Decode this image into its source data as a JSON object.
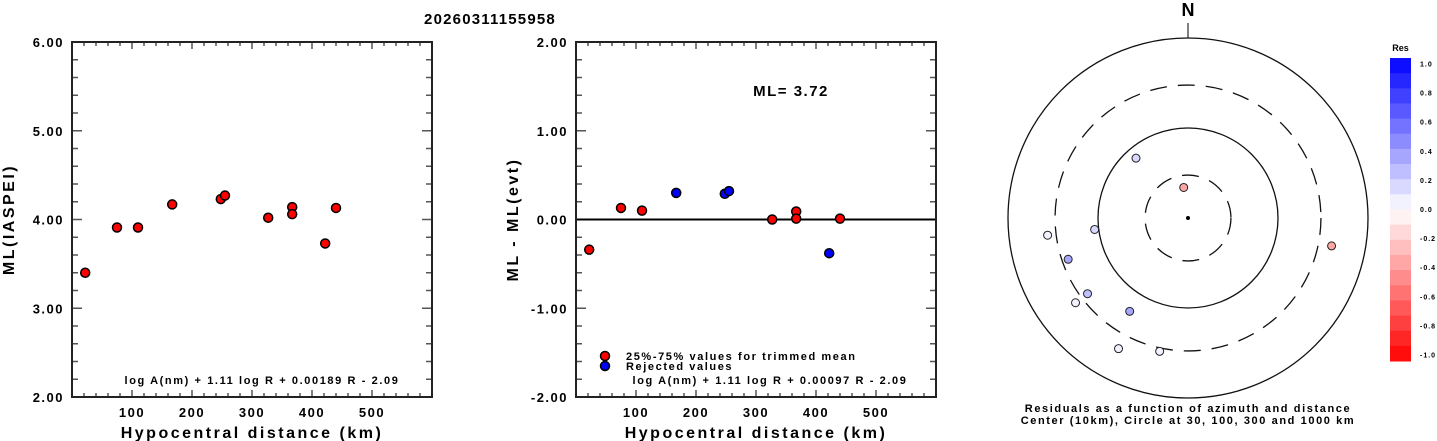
{
  "title": "20260311155958",
  "colors": {
    "used": "#ff0000",
    "rejected": "#0000ff",
    "axis": "#000000",
    "tick": "#555555"
  },
  "chart_data": [
    {
      "id": "ml-vs-distance",
      "type": "scatter",
      "title": "",
      "xlabel": "Hypocentral distance (km)",
      "ylabel": "ML(IASPEI)",
      "xlim": [
        0,
        600
      ],
      "ylim": [
        2.0,
        6.0
      ],
      "xticks": [
        100,
        200,
        300,
        400,
        500
      ],
      "yticks": [
        2.0,
        3.0,
        4.0,
        5.0,
        6.0
      ],
      "ytick_labels": [
        "2.00",
        "3.00",
        "4.00",
        "5.00",
        "6.00"
      ],
      "grid": false,
      "annotation": "log A(nm) + 1.11 log R + 0.00189 R - 2.09",
      "series": [
        {
          "name": "station ML",
          "color": "#ff0000",
          "points": [
            {
              "x": 22,
              "y": 3.4
            },
            {
              "x": 75,
              "y": 3.91
            },
            {
              "x": 110,
              "y": 3.91
            },
            {
              "x": 167,
              "y": 4.17
            },
            {
              "x": 248,
              "y": 4.23
            },
            {
              "x": 255,
              "y": 4.27
            },
            {
              "x": 327,
              "y": 4.02
            },
            {
              "x": 367,
              "y": 4.14
            },
            {
              "x": 367,
              "y": 4.06
            },
            {
              "x": 422,
              "y": 3.73
            },
            {
              "x": 440,
              "y": 4.13
            }
          ]
        }
      ]
    },
    {
      "id": "residual-vs-distance",
      "type": "scatter",
      "title": "",
      "xlabel": "Hypocentral distance (km)",
      "ylabel": "ML - ML(evt)",
      "xlim": [
        0,
        600
      ],
      "ylim": [
        -2.0,
        2.0
      ],
      "xticks": [
        100,
        200,
        300,
        400,
        500
      ],
      "yticks": [
        -2.0,
        -1.0,
        0.0,
        1.0,
        2.0
      ],
      "ytick_labels": [
        "-2.00",
        "-1.00",
        "0.00",
        "1.00",
        "2.00"
      ],
      "grid": false,
      "zero_line": true,
      "ml_label": "ML= 3.72",
      "annotation": "log A(nm) + 1.11 log R + 0.00097 R - 2.09",
      "legend": {
        "placement": "bottom-left",
        "entries": [
          {
            "label": "25%-75% values for trimmed mean",
            "color": "#ff0000"
          },
          {
            "label": "Rejected values",
            "color": "#0000ff"
          }
        ]
      },
      "series": [
        {
          "name": "25%-75% values for trimmed mean",
          "color": "#ff0000",
          "points": [
            {
              "x": 22,
              "y": -0.34
            },
            {
              "x": 75,
              "y": 0.13
            },
            {
              "x": 110,
              "y": 0.1
            },
            {
              "x": 327,
              "y": 0.0
            },
            {
              "x": 367,
              "y": 0.09
            },
            {
              "x": 367,
              "y": 0.01
            },
            {
              "x": 440,
              "y": 0.01
            }
          ]
        },
        {
          "name": "Rejected values",
          "color": "#0000ff",
          "points": [
            {
              "x": 167,
              "y": 0.3
            },
            {
              "x": 248,
              "y": 0.29
            },
            {
              "x": 255,
              "y": 0.32
            },
            {
              "x": 422,
              "y": -0.38
            }
          ]
        }
      ]
    },
    {
      "id": "residual-polar",
      "type": "scatter",
      "projection": "polar-azimuth-logdistance",
      "north_label": "N",
      "center_km": 10,
      "circles_km": [
        30,
        100,
        300,
        1000
      ],
      "circle_styles": [
        "dashed",
        "solid",
        "dashed",
        "solid"
      ],
      "caption_line1": "Residuals as a function of azimuth and distance",
      "caption_line2": "Center (10km), Circle at 30, 100, 300 and 1000 km",
      "colorbar": {
        "title": "Res",
        "range": [
          -1.0,
          1.0
        ],
        "tick_labels": [
          "1.0",
          "0.8",
          "0.6",
          "0.4",
          "0.2",
          "0.0",
          "-0.2",
          "-0.4",
          "-0.6",
          "-0.8",
          "-1.0"
        ],
        "positive_color": "#0000ff",
        "negative_color": "#ff0000",
        "steps": 20
      },
      "points": [
        {
          "azimuth": 319,
          "distance_km": 76,
          "residual": 0.13
        },
        {
          "azimuth": 352,
          "distance_km": 22,
          "residual": -0.34
        },
        {
          "azimuth": 263,
          "distance_km": 111,
          "residual": 0.1
        },
        {
          "azimuth": 263,
          "distance_km": 373,
          "residual": 0.01
        },
        {
          "azimuth": 251,
          "distance_km": 256,
          "residual": 0.32
        },
        {
          "azimuth": 233,
          "distance_km": 250,
          "residual": 0.29
        },
        {
          "azimuth": 233,
          "distance_km": 367,
          "residual": 0.09
        },
        {
          "azimuth": 212,
          "distance_km": 167,
          "residual": 0.3
        },
        {
          "azimuth": 208,
          "distance_km": 441,
          "residual": 0.01
        },
        {
          "azimuth": 192,
          "distance_km": 327,
          "residual": 0.0
        },
        {
          "azimuth": 101,
          "distance_km": 422,
          "residual": -0.38
        }
      ]
    }
  ]
}
